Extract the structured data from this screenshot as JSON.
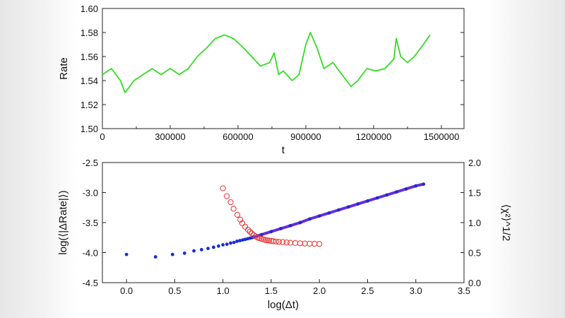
{
  "chart_data": [
    {
      "type": "line",
      "title": "",
      "xlabel": "t",
      "ylabel": "Rate",
      "xlim": [
        0,
        1600000
      ],
      "ylim": [
        1.5,
        1.6
      ],
      "xticks": [
        0,
        300000,
        600000,
        900000,
        1200000,
        1500000
      ],
      "yticks": [
        1.5,
        1.52,
        1.54,
        1.56,
        1.58,
        1.6
      ],
      "grid": false,
      "color": "#33dd22",
      "series": [
        {
          "x": [
            0,
            40000,
            80000,
            100000,
            140000,
            180000,
            220000,
            260000,
            300000,
            340000,
            380000,
            420000,
            460000,
            500000,
            540000,
            580000,
            620000,
            660000,
            700000,
            740000,
            760000,
            780000,
            800000,
            840000,
            870000,
            900000,
            920000,
            950000,
            980000,
            1020000,
            1060000,
            1100000,
            1130000,
            1170000,
            1210000,
            1250000,
            1290000,
            1300000,
            1320000,
            1350000,
            1380000,
            1420000,
            1450000
          ],
          "values": [
            1.545,
            1.55,
            1.54,
            1.53,
            1.54,
            1.545,
            1.55,
            1.545,
            1.55,
            1.545,
            1.55,
            1.56,
            1.567,
            1.575,
            1.578,
            1.575,
            1.568,
            1.56,
            1.552,
            1.555,
            1.563,
            1.545,
            1.548,
            1.54,
            1.545,
            1.57,
            1.58,
            1.567,
            1.55,
            1.555,
            1.545,
            1.535,
            1.54,
            1.55,
            1.548,
            1.55,
            1.558,
            1.575,
            1.56,
            1.555,
            1.56,
            1.57,
            1.578
          ]
        }
      ]
    },
    {
      "type": "scatter",
      "title": "",
      "xlabel": "log(Δt)",
      "ylabel": "log(⟨|ΔRate|⟩)",
      "y2label": "⟨χ²⟩^1/2",
      "xlim": [
        -0.25,
        3.5
      ],
      "ylim": [
        -4.5,
        -2.5
      ],
      "y2lim": [
        0.0,
        2.0
      ],
      "xticks": [
        0.0,
        0.5,
        1.0,
        1.5,
        2.0,
        2.5,
        3.0,
        3.5
      ],
      "yticks": [
        -4.5,
        -4.0,
        -3.5,
        -3.0,
        -2.5
      ],
      "y2ticks": [
        0.0,
        0.5,
        1.0,
        1.5,
        2.0
      ],
      "grid": false,
      "series": [
        {
          "axis": "left",
          "color": "#1b2bd6",
          "x": [
            0.0,
            0.301,
            0.477,
            0.602,
            0.699,
            0.778,
            0.845,
            0.903,
            0.954,
            1.0,
            1.041,
            1.079,
            1.114,
            1.146,
            1.176,
            1.204,
            1.23,
            1.255,
            1.279,
            1.301,
            1.4,
            1.5,
            1.6,
            1.7,
            1.8,
            1.9,
            2.0,
            2.1,
            2.2,
            2.3,
            2.4,
            2.5,
            2.6,
            2.7,
            2.8,
            2.9,
            3.0,
            3.08
          ],
          "values": [
            -4.03,
            -4.07,
            -4.03,
            -4.01,
            -3.97,
            -3.95,
            -3.93,
            -3.91,
            -3.89,
            -3.87,
            -3.86,
            -3.84,
            -3.83,
            -3.81,
            -3.8,
            -3.79,
            -3.78,
            -3.77,
            -3.76,
            -3.75,
            -3.7,
            -3.65,
            -3.6,
            -3.55,
            -3.5,
            -3.44,
            -3.39,
            -3.34,
            -3.29,
            -3.24,
            -3.19,
            -3.14,
            -3.09,
            -3.04,
            -2.99,
            -2.94,
            -2.89,
            -2.86
          ]
        },
        {
          "axis": "right",
          "color": "#e83030",
          "x": [
            1.0,
            1.04,
            1.08,
            1.11,
            1.15,
            1.18,
            1.2,
            1.23,
            1.26,
            1.28,
            1.3,
            1.32,
            1.34,
            1.36,
            1.38,
            1.4,
            1.42,
            1.44,
            1.46,
            1.48,
            1.5,
            1.52,
            1.55,
            1.58,
            1.62,
            1.66,
            1.7,
            1.75,
            1.8,
            1.85,
            1.9,
            1.95,
            2.0
          ],
          "values": [
            1.57,
            1.44,
            1.34,
            1.23,
            1.13,
            1.05,
            0.99,
            0.93,
            0.88,
            0.85,
            0.82,
            0.79,
            0.77,
            0.75,
            0.74,
            0.73,
            0.72,
            0.71,
            0.705,
            0.7,
            0.695,
            0.69,
            0.685,
            0.68,
            0.675,
            0.67,
            0.665,
            0.66,
            0.655,
            0.652,
            0.65,
            0.648,
            0.645
          ]
        }
      ]
    }
  ]
}
